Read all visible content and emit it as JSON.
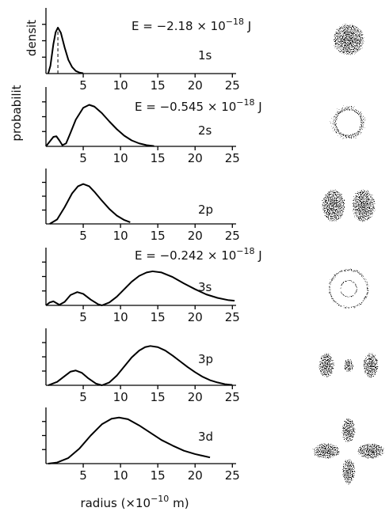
{
  "figure": {
    "xlabel": {
      "text": "radius (×10",
      "exponent": "−10",
      "unit": " m)"
    },
    "ylabel": [
      "probabilit",
      "densit"
    ]
  },
  "chart_data": [
    {
      "type": "line",
      "label": "1s",
      "energy": {
        "text": "E = −2.18 × 10",
        "exponent": "−18",
        "unit": " J"
      },
      "color": "#000000",
      "x": [
        0.3,
        0.6,
        1,
        1.3,
        1.6,
        2,
        2.5,
        3,
        3.5,
        4,
        4.5,
        5
      ],
      "values": [
        0,
        0.12,
        0.45,
        0.63,
        0.7,
        0.62,
        0.4,
        0.21,
        0.1,
        0.04,
        0.015,
        0.005
      ],
      "dashed_line_x": 1.6,
      "xlim": [
        0,
        25.5
      ],
      "ylim": [
        0,
        1
      ],
      "xticks": [
        5,
        10,
        15,
        20,
        25
      ],
      "yticks": [
        0.25,
        0.5,
        0.75
      ]
    },
    {
      "type": "line",
      "label": "2s",
      "energy": {
        "text": "E = −0.545 × 10",
        "exponent": "−18",
        "unit": " J"
      },
      "color": "#000000",
      "x": [
        0,
        0.5,
        1,
        1.4,
        1.8,
        2.2,
        2.7,
        3.2,
        4,
        5,
        5.8,
        6.5,
        7.5,
        8.5,
        9.5,
        10.5,
        11.5,
        12.5,
        13.5,
        14.5
      ],
      "values": [
        0,
        0.08,
        0.16,
        0.17,
        0.1,
        0.02,
        0.05,
        0.2,
        0.45,
        0.65,
        0.7,
        0.67,
        0.56,
        0.42,
        0.29,
        0.18,
        0.1,
        0.05,
        0.02,
        0.005
      ],
      "xlim": [
        0,
        25.5
      ],
      "ylim": [
        0,
        1
      ],
      "xticks": [
        5,
        10,
        15,
        20,
        25
      ],
      "yticks": [
        0.25,
        0.5,
        0.75
      ]
    },
    {
      "type": "line",
      "label": "2p",
      "color": "#000000",
      "x": [
        0.5,
        1.5,
        2.5,
        3.5,
        4.3,
        5,
        5.8,
        6.5,
        7.5,
        8.5,
        9.5,
        10.5,
        11.3
      ],
      "values": [
        0,
        0.08,
        0.3,
        0.55,
        0.68,
        0.72,
        0.68,
        0.58,
        0.42,
        0.27,
        0.15,
        0.07,
        0.03
      ],
      "xlim": [
        0,
        25.5
      ],
      "ylim": [
        0,
        1
      ],
      "xticks": [
        5,
        10,
        15,
        20,
        25
      ],
      "yticks": [
        0.25,
        0.5,
        0.75
      ]
    },
    {
      "type": "line",
      "label": "3s",
      "energy": {
        "text": "E = −0.242 × 10",
        "exponent": "−18",
        "unit": " J"
      },
      "color": "#000000",
      "x": [
        0,
        0.5,
        1,
        1.8,
        2.5,
        3.3,
        4.2,
        5,
        6,
        7,
        7.5,
        8.5,
        9.5,
        10.5,
        11.5,
        12.5,
        13.5,
        14.3,
        15.5,
        17,
        18.5,
        20,
        21.5,
        23,
        24.5,
        25.3
      ],
      "values": [
        0,
        0.05,
        0.07,
        0.01,
        0.06,
        0.18,
        0.23,
        0.2,
        0.1,
        0.02,
        0,
        0.05,
        0.15,
        0.28,
        0.41,
        0.51,
        0.57,
        0.59,
        0.57,
        0.49,
        0.38,
        0.28,
        0.19,
        0.13,
        0.09,
        0.08
      ],
      "xlim": [
        0,
        25.5
      ],
      "ylim": [
        0,
        1
      ],
      "xticks": [
        5,
        10,
        15,
        20,
        25
      ],
      "yticks": [
        0.25,
        0.5,
        0.75
      ]
    },
    {
      "type": "line",
      "label": "3p",
      "color": "#000000",
      "x": [
        0.3,
        1.5,
        2.5,
        3.3,
        4,
        4.8,
        5.7,
        6.7,
        7.5,
        8.5,
        9.5,
        10.5,
        11.5,
        12.5,
        13.3,
        14,
        15,
        16,
        17,
        18,
        19,
        20,
        21,
        22,
        23,
        24,
        25
      ],
      "values": [
        0,
        0.06,
        0.16,
        0.24,
        0.26,
        0.22,
        0.12,
        0.03,
        0,
        0.05,
        0.17,
        0.33,
        0.49,
        0.61,
        0.67,
        0.69,
        0.67,
        0.61,
        0.52,
        0.42,
        0.32,
        0.23,
        0.15,
        0.09,
        0.05,
        0.02,
        0.005
      ],
      "xlim": [
        0,
        25.5
      ],
      "ylim": [
        0,
        1
      ],
      "xticks": [
        5,
        10,
        15,
        20,
        25
      ],
      "yticks": [
        0.25,
        0.5,
        0.75
      ]
    },
    {
      "type": "line",
      "label": "3d",
      "color": "#000000",
      "x": [
        0.3,
        1.5,
        3,
        4.5,
        6,
        7.5,
        8.8,
        9.8,
        11,
        12.5,
        14,
        15.5,
        17,
        18.5,
        20,
        22
      ],
      "values": [
        0,
        0.02,
        0.1,
        0.27,
        0.5,
        0.7,
        0.8,
        0.82,
        0.79,
        0.68,
        0.55,
        0.42,
        0.32,
        0.23,
        0.17,
        0.11
      ],
      "xlim": [
        0,
        25.5
      ],
      "ylim": [
        0,
        1
      ],
      "xticks": [
        5,
        10,
        15,
        20,
        25
      ],
      "yticks": [
        0.25,
        0.5,
        0.75
      ]
    }
  ]
}
